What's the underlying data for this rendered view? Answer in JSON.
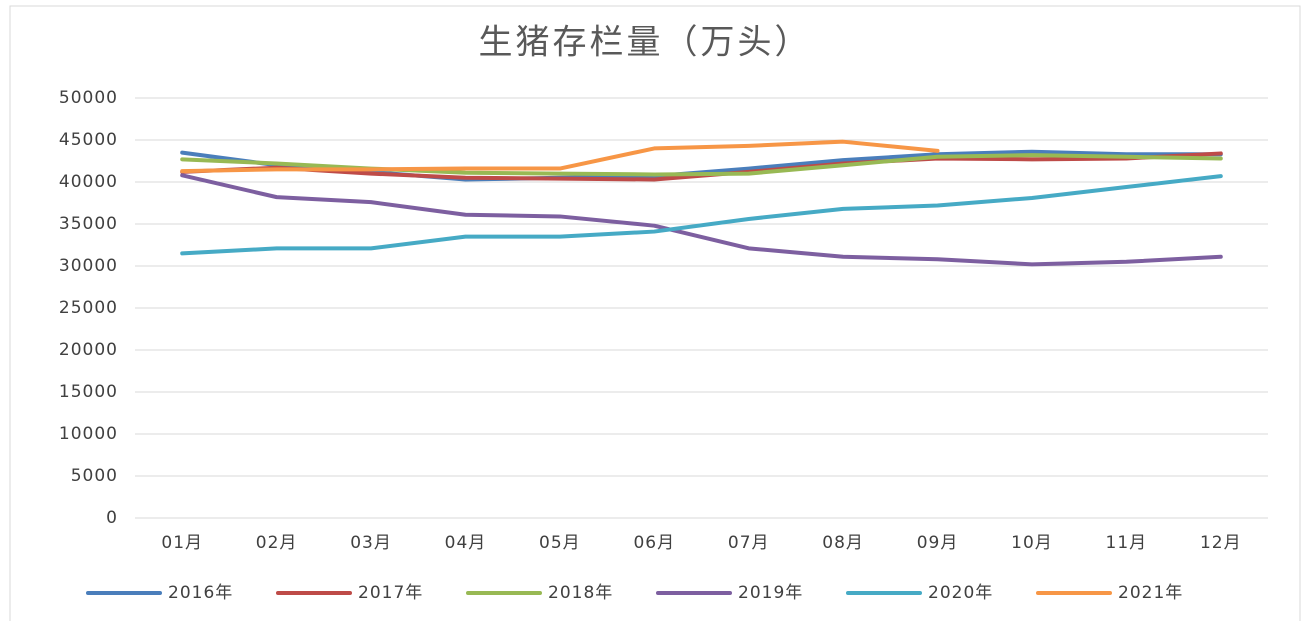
{
  "chart_data": {
    "type": "line",
    "title": "生猪存栏量（万头）",
    "categories": [
      "01月",
      "02月",
      "03月",
      "04月",
      "05月",
      "06月",
      "07月",
      "08月",
      "09月",
      "10月",
      "11月",
      "12月"
    ],
    "ylim": [
      0,
      50000
    ],
    "yticks": [
      0,
      5000,
      10000,
      15000,
      20000,
      25000,
      30000,
      35000,
      40000,
      45000,
      50000
    ],
    "grid": true,
    "legend": "bottom",
    "series": [
      {
        "name": "2016年",
        "color": "#4a7ebb",
        "values": [
          43500,
          42000,
          41200,
          40300,
          40500,
          40700,
          41600,
          42600,
          43300,
          43600,
          43300,
          43300
        ]
      },
      {
        "name": "2017年",
        "color": "#be4b48",
        "values": [
          41200,
          41700,
          41000,
          40500,
          40400,
          40300,
          41200,
          42200,
          42800,
          42700,
          42800,
          43400
        ]
      },
      {
        "name": "2018年",
        "color": "#98b954",
        "values": [
          42700,
          42200,
          41600,
          41100,
          41000,
          40900,
          41000,
          42000,
          43000,
          43200,
          43000,
          42800
        ]
      },
      {
        "name": "2019年",
        "color": "#7d5fa0",
        "values": [
          40800,
          38200,
          37600,
          36100,
          35900,
          34800,
          32100,
          31100,
          30800,
          30200,
          30500,
          31100
        ]
      },
      {
        "name": "2020年",
        "color": "#46aac5",
        "values": [
          31500,
          32100,
          32100,
          33500,
          33500,
          34100,
          35600,
          36800,
          37200,
          38100,
          39400,
          40700
        ]
      },
      {
        "name": "2021年",
        "color": "#f79646",
        "values": [
          41300,
          41500,
          41500,
          41600,
          41600,
          44000,
          44300,
          44800,
          43700,
          null,
          null,
          null
        ]
      }
    ]
  }
}
